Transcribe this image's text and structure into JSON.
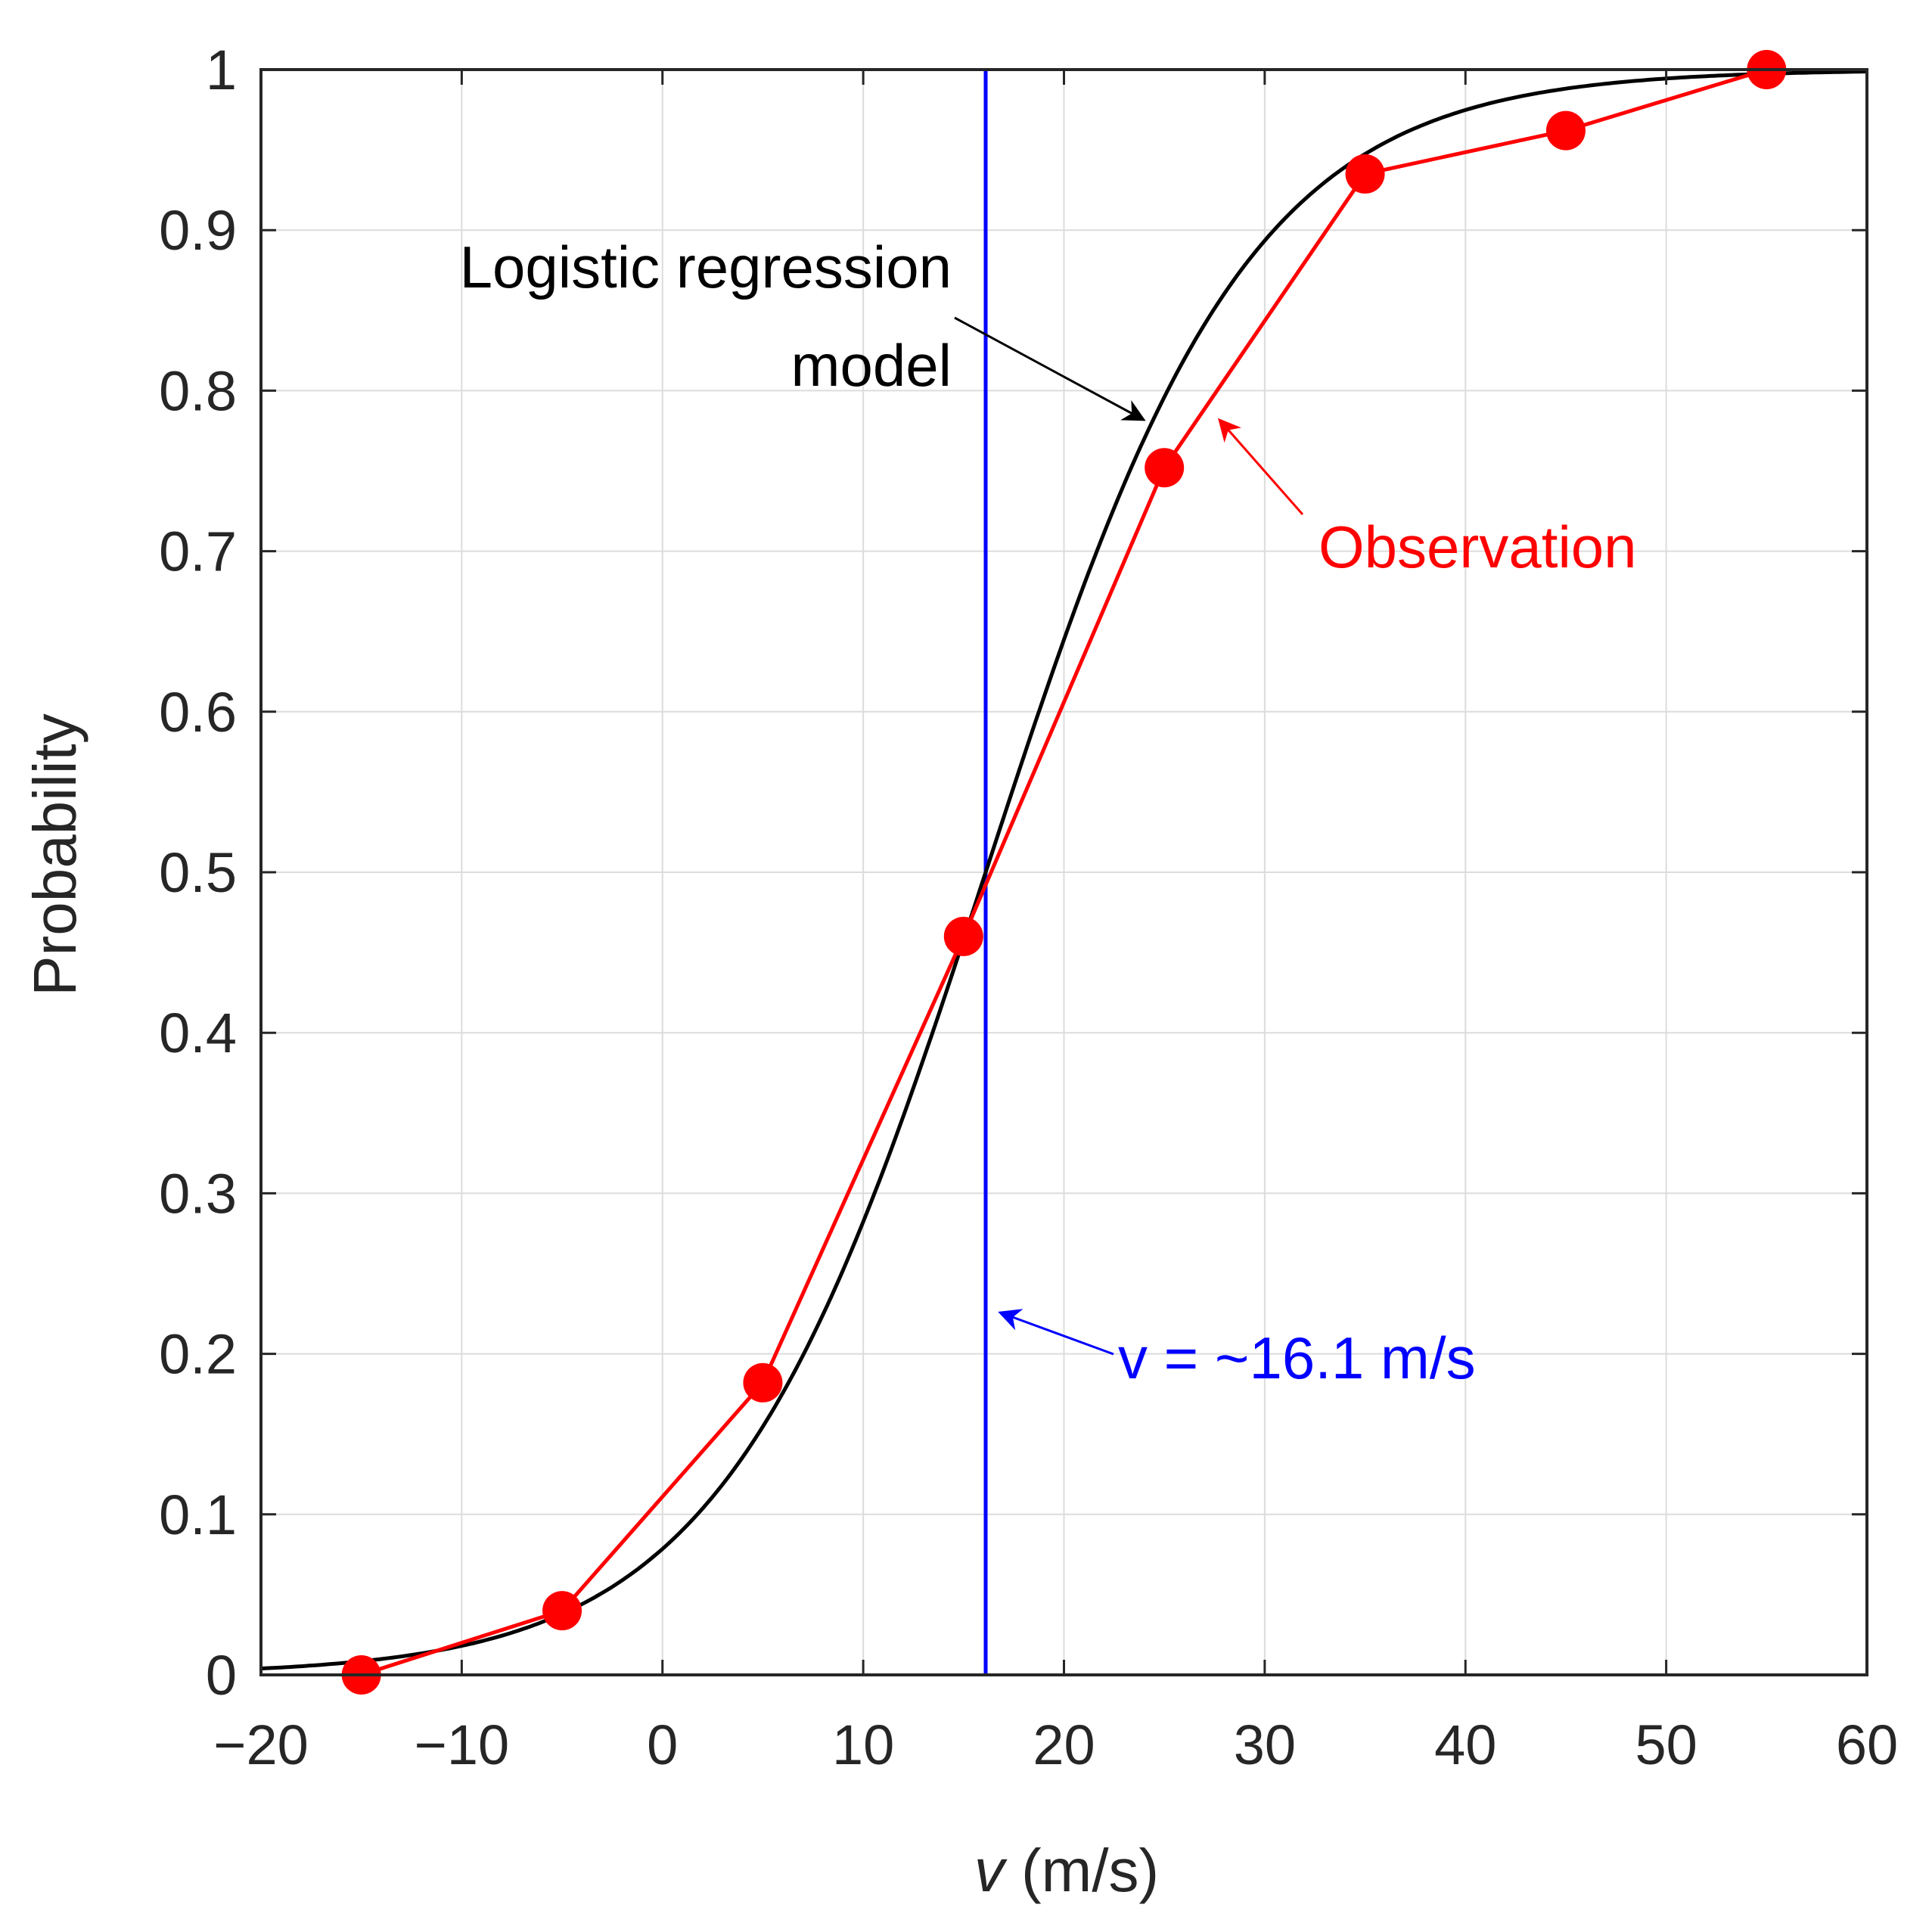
{
  "chart_data": {
    "type": "line",
    "title": "",
    "xlabel_var": "v",
    "xlabel_unit": " (m/s)",
    "ylabel": "Probability",
    "xlim": [
      -20,
      60
    ],
    "ylim": [
      0,
      1
    ],
    "xticks": [
      -20,
      -10,
      0,
      10,
      20,
      30,
      40,
      50,
      60
    ],
    "xtick_labels": [
      "−20",
      "−10",
      "0",
      "10",
      "20",
      "30",
      "40",
      "50",
      "60"
    ],
    "yticks": [
      0,
      0.1,
      0.2,
      0.3,
      0.4,
      0.5,
      0.6,
      0.7,
      0.8,
      0.9,
      1
    ],
    "ytick_labels": [
      "0",
      "0.1",
      "0.2",
      "0.3",
      "0.4",
      "0.5",
      "0.6",
      "0.7",
      "0.8",
      "0.9",
      "1"
    ],
    "grid": true,
    "series": [
      {
        "name": "Observation",
        "kind": "line-markers",
        "color": "#ff0000",
        "x": [
          -15,
          -5,
          5,
          15,
          25,
          35,
          45,
          55
        ],
        "y": [
          0.0,
          0.04,
          0.182,
          0.46,
          0.752,
          0.935,
          0.962,
          1.0
        ]
      },
      {
        "name": "Logistic regression model",
        "kind": "logistic-curve",
        "color": "#000000",
        "midpoint": 16.1,
        "slope": 0.153
      }
    ],
    "threshold": {
      "x": 16.1,
      "label": "v = ~16.1 m/s",
      "color": "#0000ff"
    },
    "annotations": {
      "model_line1": "Logistic regression",
      "model_line2": "model",
      "observation": "Observation"
    }
  }
}
